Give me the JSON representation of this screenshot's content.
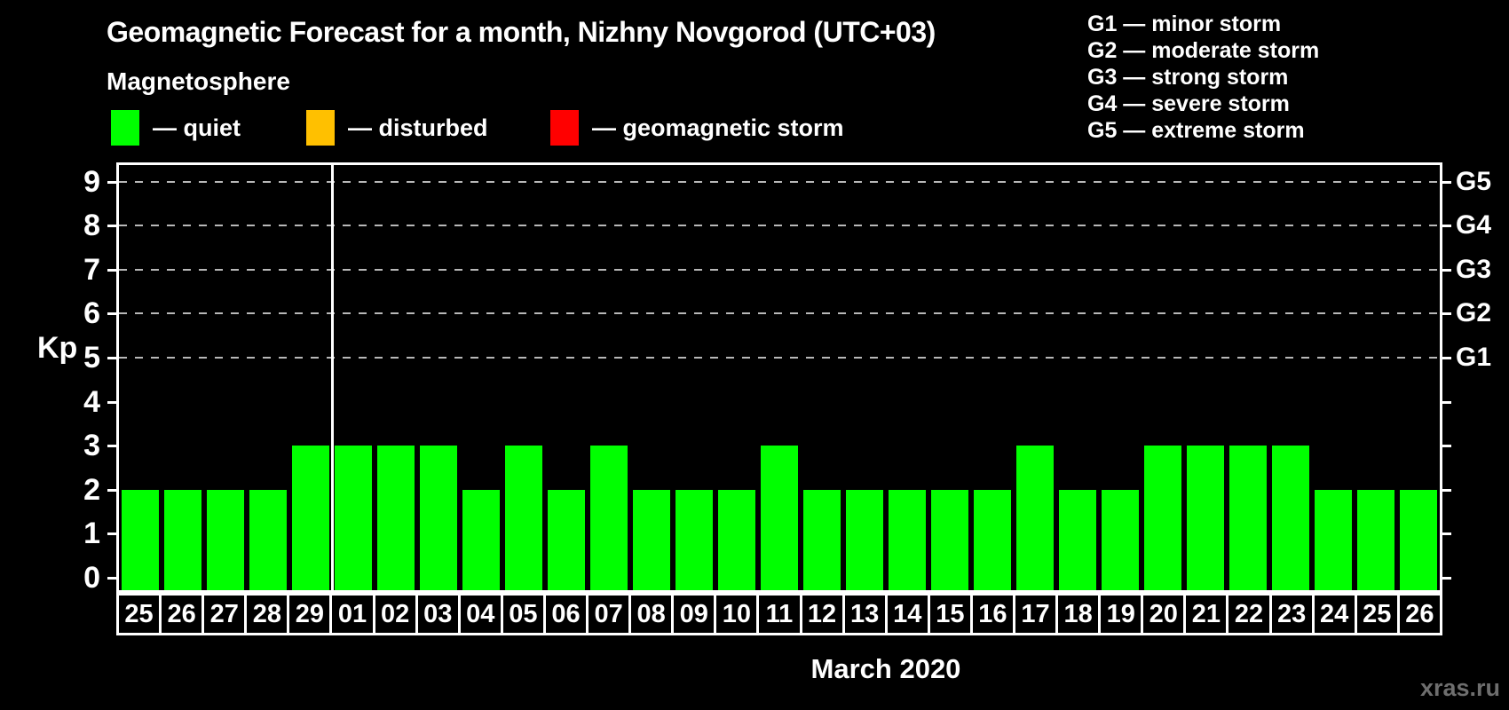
{
  "title": "Geomagnetic Forecast for a month, Nizhny Novgorod (UTC+03)",
  "subtitle": "Magnetosphere",
  "legend": {
    "items": [
      {
        "name": "quiet",
        "label": "— quiet",
        "color": "#00ff00"
      },
      {
        "name": "disturbed",
        "label": "— disturbed",
        "color": "#ffc000"
      },
      {
        "name": "geomagnetic-storm",
        "label": "— geomagnetic storm",
        "color": "#ff0000"
      }
    ]
  },
  "g_scale_legend": [
    "G1 — minor storm",
    "G2 — moderate storm",
    "G3 — strong storm",
    "G4 — severe storm",
    "G5 — extreme storm"
  ],
  "watermark": "xras.ru",
  "watermark_color": "#6e6e6e",
  "chart_data": {
    "type": "bar",
    "title": "Geomagnetic Forecast for a month, Nizhny Novgorod (UTC+03)",
    "ylabel": "Kp",
    "xlabel": "March 2020",
    "ylim": [
      0,
      9.4
    ],
    "yticks": [
      0,
      1,
      2,
      3,
      4,
      5,
      6,
      7,
      8,
      9
    ],
    "gridlines_at_kp": [
      5,
      6,
      7,
      8,
      9
    ],
    "grid": "dashed",
    "legend_position": "top",
    "right_axis_labels": [
      {
        "label": "G5",
        "kp": 9
      },
      {
        "label": "G4",
        "kp": 8
      },
      {
        "label": "G3",
        "kp": 7
      },
      {
        "label": "G2",
        "kp": 6
      },
      {
        "label": "G1",
        "kp": 5
      }
    ],
    "categories": [
      "25",
      "26",
      "27",
      "28",
      "29",
      "01",
      "02",
      "03",
      "04",
      "05",
      "06",
      "07",
      "08",
      "09",
      "10",
      "11",
      "12",
      "13",
      "14",
      "15",
      "16",
      "17",
      "18",
      "19",
      "20",
      "21",
      "22",
      "23",
      "24",
      "25",
      "26"
    ],
    "values": [
      2,
      2,
      2,
      2,
      3,
      3,
      3,
      3,
      2,
      3,
      2,
      3,
      2,
      2,
      2,
      3,
      2,
      2,
      2,
      2,
      2,
      3,
      2,
      2,
      3,
      3,
      3,
      3,
      2,
      2,
      2
    ],
    "status_per_bar": "quiet",
    "bar_color": "#00ff00",
    "month_separator_after_index": 4
  }
}
